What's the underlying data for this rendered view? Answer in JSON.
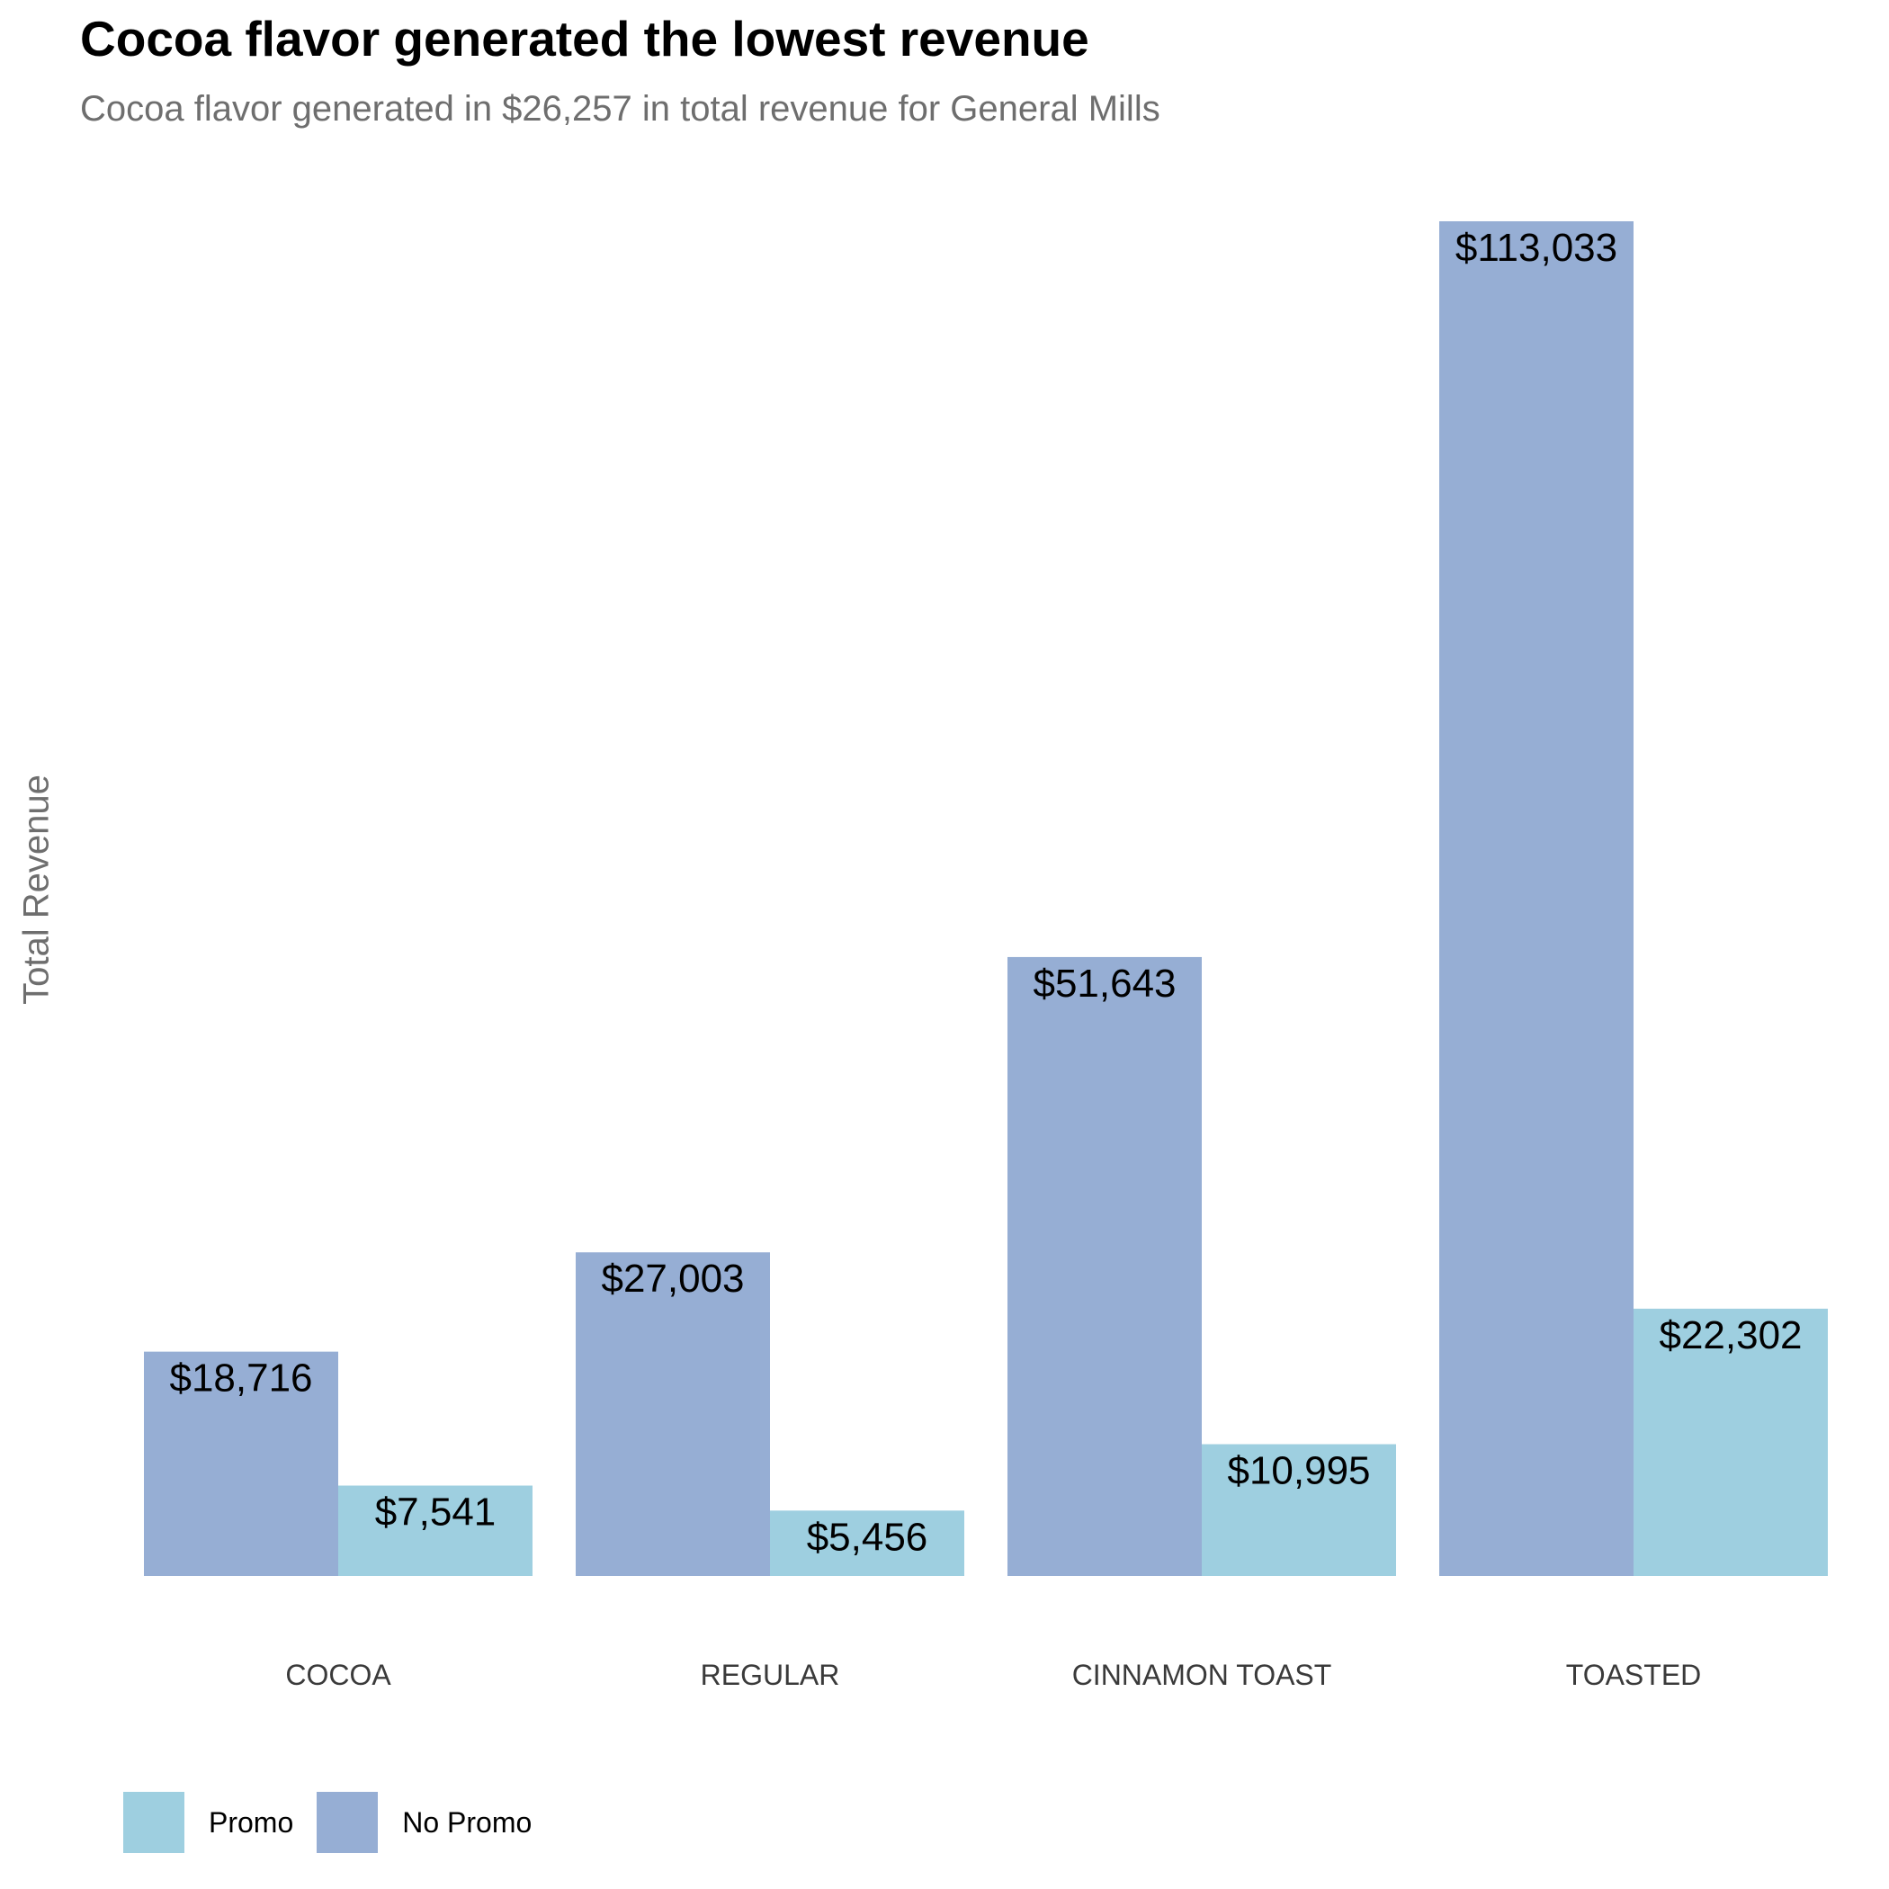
{
  "chart_data": {
    "type": "bar",
    "title": "Cocoa flavor generated the lowest revenue",
    "subtitle": "Cocoa flavor generated in $26,257 in total revenue for General Mills",
    "xlabel": "",
    "ylabel": "Total Revenue",
    "categories": [
      "COCOA",
      "REGULAR",
      "CINNAMON TOAST",
      "TOASTED"
    ],
    "series": [
      {
        "name": "No Promo",
        "values": [
          18716,
          27003,
          51643,
          113033
        ],
        "labels": [
          "$18,716",
          "$27,003",
          "$51,643",
          "$113,033"
        ],
        "color": "#96aed4"
      },
      {
        "name": "Promo",
        "values": [
          7541,
          5456,
          10995,
          22302
        ],
        "labels": [
          "$7,541",
          "$5,456",
          "$10,995",
          "$22,302"
        ],
        "color": "#9ecfe0"
      }
    ],
    "ylim": [
      0,
      113033
    ],
    "grid": false,
    "y_axis_ticks_shown": false,
    "legend_position": "bottom-left",
    "legend": [
      {
        "label": "Promo",
        "color": "#9ecfe0"
      },
      {
        "label": "No Promo",
        "color": "#96aed4"
      }
    ]
  }
}
